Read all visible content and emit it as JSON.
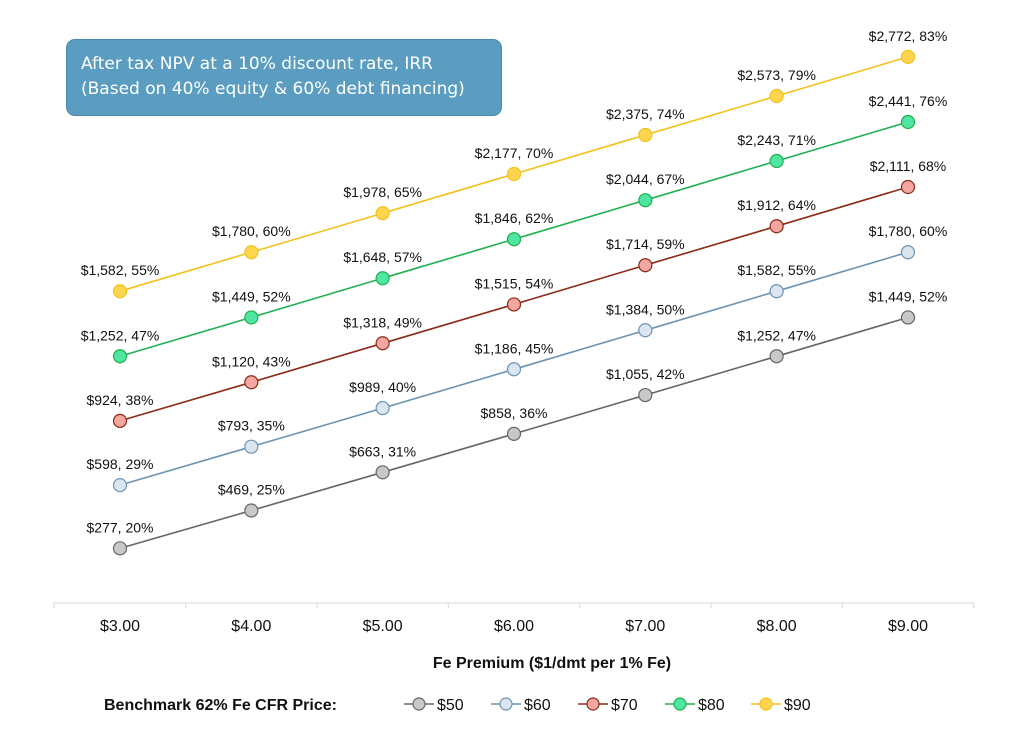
{
  "chart_data": {
    "type": "line",
    "annotation": [
      "After tax NPV at a 10% discount rate, IRR",
      "(Based on 40% equity & 60% debt financing)"
    ],
    "xlabel": "Fe Premium ($1/dmt per 1% Fe)",
    "categories": [
      "$3.00",
      "$4.00",
      "$5.00",
      "$6.00",
      "$7.00",
      "$8.00",
      "$9.00"
    ],
    "x": [
      3,
      4,
      5,
      6,
      7,
      8,
      9
    ],
    "legend_title": "Benchmark 62% Fe CFR Price:",
    "legend_position": "bottom",
    "grid": false,
    "ylim": [
      0,
      3000
    ],
    "series": [
      {
        "name": "$50",
        "line_color": "#666666",
        "marker_color": "#c8c8c8",
        "values": [
          277,
          469,
          663,
          858,
          1055,
          1252,
          1449
        ],
        "labels": [
          "$277, 20%",
          "$469, 25%",
          "$663, 31%",
          "$858, 36%",
          "$1,055, 42%",
          "$1,252, 47%",
          "$1,449, 52%"
        ]
      },
      {
        "name": "$60",
        "line_color": "#6b93b0",
        "marker_color": "#dce6f0",
        "values": [
          598,
          793,
          989,
          1186,
          1384,
          1582,
          1780
        ],
        "labels": [
          "$598, 29%",
          "$793, 35%",
          "$989, 40%",
          "$1,186, 45%",
          "$1,384, 50%",
          "$1,582, 55%",
          "$1,780, 60%"
        ]
      },
      {
        "name": "$70",
        "line_color": "#8b2b18",
        "marker_color": "#f4a6a0",
        "values": [
          924,
          1120,
          1318,
          1515,
          1714,
          1912,
          2111
        ],
        "labels": [
          "$924, 38%",
          "$1,120, 43%",
          "$1,318, 49%",
          "$1,515, 54%",
          "$1,714, 59%",
          "$1,912, 64%",
          "$2,111, 68%"
        ]
      },
      {
        "name": "$80",
        "line_color": "#20b050",
        "marker_color": "#4ee6a0",
        "values": [
          1252,
          1449,
          1648,
          1846,
          2044,
          2243,
          2441
        ],
        "labels": [
          "$1,252, 47%",
          "$1,449, 52%",
          "$1,648, 57%",
          "$1,846, 62%",
          "$2,044, 67%",
          "$2,243, 71%",
          "$2,441, 76%"
        ]
      },
      {
        "name": "$90",
        "line_color": "#f2c21a",
        "marker_color": "#ffd54f",
        "values": [
          1582,
          1780,
          1978,
          2177,
          2375,
          2573,
          2772
        ],
        "labels": [
          "$1,582, 55%",
          "$1,780, 60%",
          "$1,978, 65%",
          "$2,177, 70%",
          "$2,375, 74%",
          "$2,573, 79%",
          "$2,772, 83%"
        ]
      }
    ]
  }
}
